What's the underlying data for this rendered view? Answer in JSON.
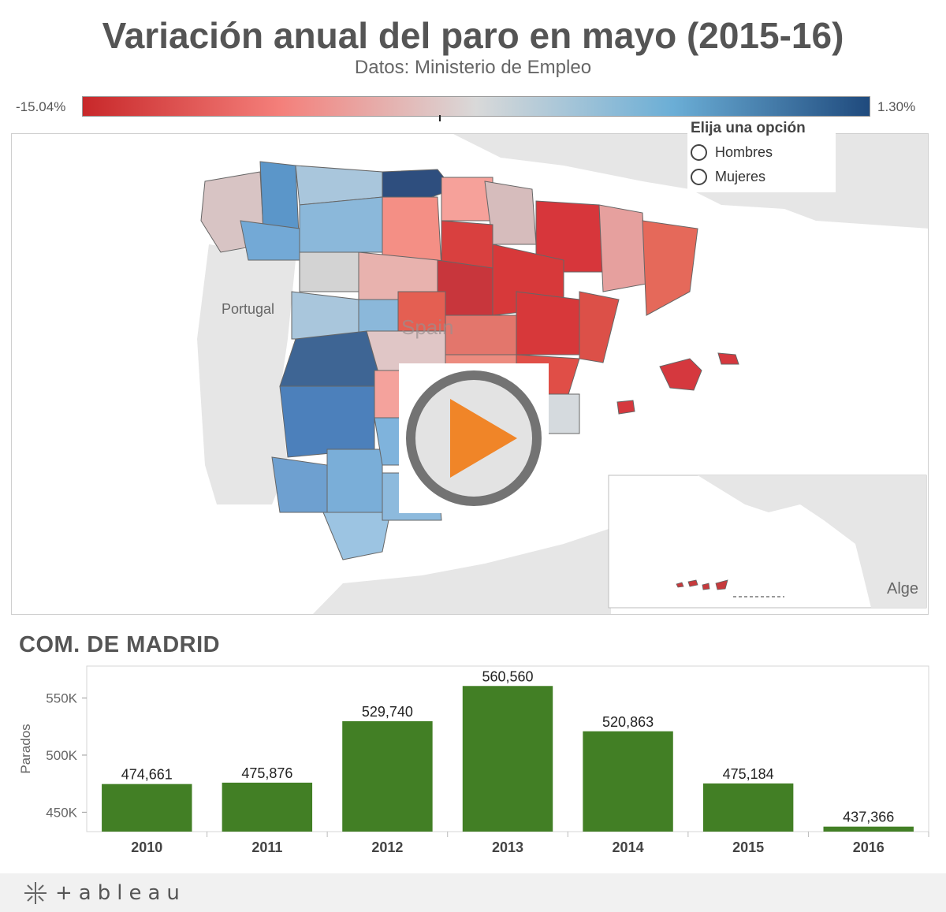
{
  "header": {
    "title": "Variación anual del paro en mayo (2015-16)",
    "subtitle": "Datos: Ministerio de Empleo"
  },
  "legend": {
    "min_label": "-15.04%",
    "max_label": "1.30%",
    "colors": [
      "#c8282a",
      "#f47f7a",
      "#d9d9d9",
      "#6baed6",
      "#1f4a7d"
    ]
  },
  "map": {
    "labels": {
      "portugal": "Portugal",
      "spain": "Spain",
      "algeria": "Alge"
    },
    "colors": {
      "land": "#e6e6e6",
      "sea": "#ffffff",
      "border": "#666666"
    }
  },
  "filter": {
    "title": "Elija una opción",
    "options": [
      "Hombres",
      "Mujeres"
    ]
  },
  "play_button": {
    "icon": "play-icon",
    "color": "#f08528"
  },
  "section": {
    "title": "COM. DE MADRID"
  },
  "chart_data": {
    "type": "bar",
    "title": "COM. DE MADRID",
    "xlabel": "",
    "ylabel": "Parados",
    "categories": [
      "2010",
      "2011",
      "2012",
      "2013",
      "2014",
      "2015",
      "2016"
    ],
    "values": [
      474661,
      475876,
      529740,
      560560,
      520863,
      475184,
      437366
    ],
    "value_labels": [
      "474,661",
      "475,876",
      "529,740",
      "560,560",
      "520,863",
      "475,184",
      "437,366"
    ],
    "yticks": [
      450000,
      500000,
      550000
    ],
    "ytick_labels": [
      "450K",
      "500K",
      "550K"
    ],
    "ylim": [
      433000,
      578000
    ],
    "bar_color": "#427f25",
    "grid": false
  },
  "footer": {
    "logo_text": "+ableau"
  }
}
